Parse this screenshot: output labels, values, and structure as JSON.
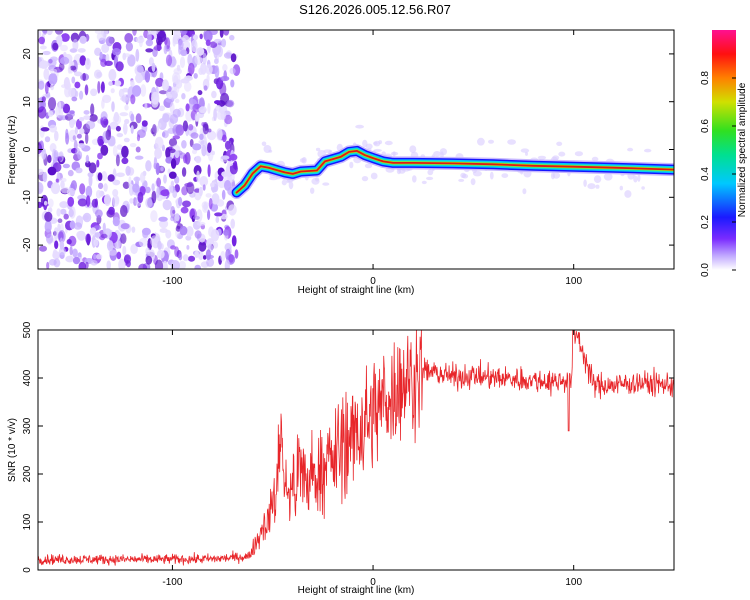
{
  "title": "S126.2026.005.12.56.R07",
  "colors": {
    "snr_line": "#e8262a",
    "scatter": "#8a3cf0",
    "ridge_edge": "#1414ff",
    "ridge_mid": "#18e0c0",
    "ridge_core": "#e01818"
  },
  "chart_data": [
    {
      "type": "heatmap",
      "name": "spectrogram",
      "xlabel": "Height of straight line (km)",
      "ylabel": "Frequency (Hz)",
      "xlim": [
        -167,
        150
      ],
      "ylim": [
        -25,
        25
      ],
      "x_ticks": [
        -100,
        0,
        100
      ],
      "x_tick_labels": [
        "-100",
        "0",
        "100"
      ],
      "y_ticks": [
        -20,
        -10,
        0,
        10,
        20
      ],
      "y_tick_labels": [
        "-20",
        "-10",
        "0",
        "10",
        "20"
      ],
      "noise_region_x": [
        -167,
        -68
      ],
      "ridge": {
        "x": [
          -68,
          -64,
          -60,
          -56,
          -52,
          -48,
          -44,
          -40,
          -36,
          -32,
          -28,
          -24,
          -20,
          -16,
          -12,
          -8,
          -4,
          0,
          5,
          10,
          20,
          40,
          60,
          80,
          100,
          120,
          150
        ],
        "y": [
          -9,
          -7.5,
          -5,
          -3.5,
          -3.8,
          -4.3,
          -4.8,
          -5.1,
          -4.6,
          -4.5,
          -4.4,
          -2.5,
          -2,
          -1.5,
          -0.5,
          -0.3,
          -1.2,
          -1.8,
          -2.5,
          -2.8,
          -2.8,
          -2.9,
          -3.1,
          -3.4,
          -3.6,
          -3.8,
          -4.2
        ]
      }
    },
    {
      "type": "colorbar",
      "name": "amplitude-colorbar",
      "label": "Normalized spectral amplitude",
      "range": [
        0,
        1
      ],
      "ticks": [
        0.0,
        0.2,
        0.4,
        0.6,
        0.8
      ],
      "tick_labels": [
        "0.0",
        "0.2",
        "0.4",
        "0.6",
        "0.8"
      ]
    },
    {
      "type": "line",
      "name": "snr",
      "xlabel": "Height of straight line (km)",
      "ylabel": "SNR (10 * v/v)",
      "xlim": [
        -167,
        150
      ],
      "ylim": [
        0,
        500
      ],
      "x_ticks": [
        -100,
        0,
        100
      ],
      "x_tick_labels": [
        "-100",
        "0",
        "100"
      ],
      "y_ticks": [
        0,
        100,
        200,
        300,
        400,
        500
      ],
      "y_tick_labels": [
        "0",
        "100",
        "200",
        "300",
        "400",
        "500"
      ],
      "series": [
        {
          "name": "SNR",
          "x": [
            -167,
            -140,
            -110,
            -80,
            -62,
            -58,
            -52,
            -48,
            -46,
            -44,
            -40,
            -35,
            -30,
            -25,
            -20,
            -15,
            -10,
            -5,
            0,
            5,
            10,
            15,
            20,
            25,
            30,
            40,
            50,
            60,
            70,
            80,
            90,
            95,
            100,
            101,
            110,
            120,
            130,
            140,
            150
          ],
          "y": [
            22,
            22,
            22,
            23,
            28,
            60,
            110,
            160,
            330,
            150,
            175,
            185,
            190,
            215,
            230,
            255,
            275,
            300,
            325,
            350,
            372,
            392,
            405,
            415,
            412,
            402,
            405,
            400,
            398,
            395,
            392,
            396,
            398,
            500,
            385,
            385,
            390,
            388,
            385
          ]
        }
      ]
    }
  ]
}
